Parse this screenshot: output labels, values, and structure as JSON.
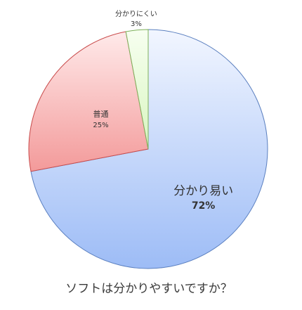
{
  "chart_data": {
    "type": "pie",
    "title": "ソフトは分かりやすいですか？",
    "slices": [
      {
        "label": "分かり易い",
        "value": 72,
        "pct_label": "72%",
        "color_top": "#f2f6ff",
        "color_bottom": "#9dbcf6",
        "stroke": "#5a7fbf"
      },
      {
        "label": "普通",
        "value": 25,
        "pct_label": "25%",
        "color_top": "#ffeaea",
        "color_bottom": "#f39a9a",
        "stroke": "#c84a4a"
      },
      {
        "label": "分かりにくい",
        "value": 3,
        "pct_label": "3%",
        "color_top": "#f7fff0",
        "color_bottom": "#d8f5c0",
        "stroke": "#7db05a"
      }
    ],
    "legend": "none",
    "start": "12 o'clock",
    "direction": "clockwise"
  }
}
